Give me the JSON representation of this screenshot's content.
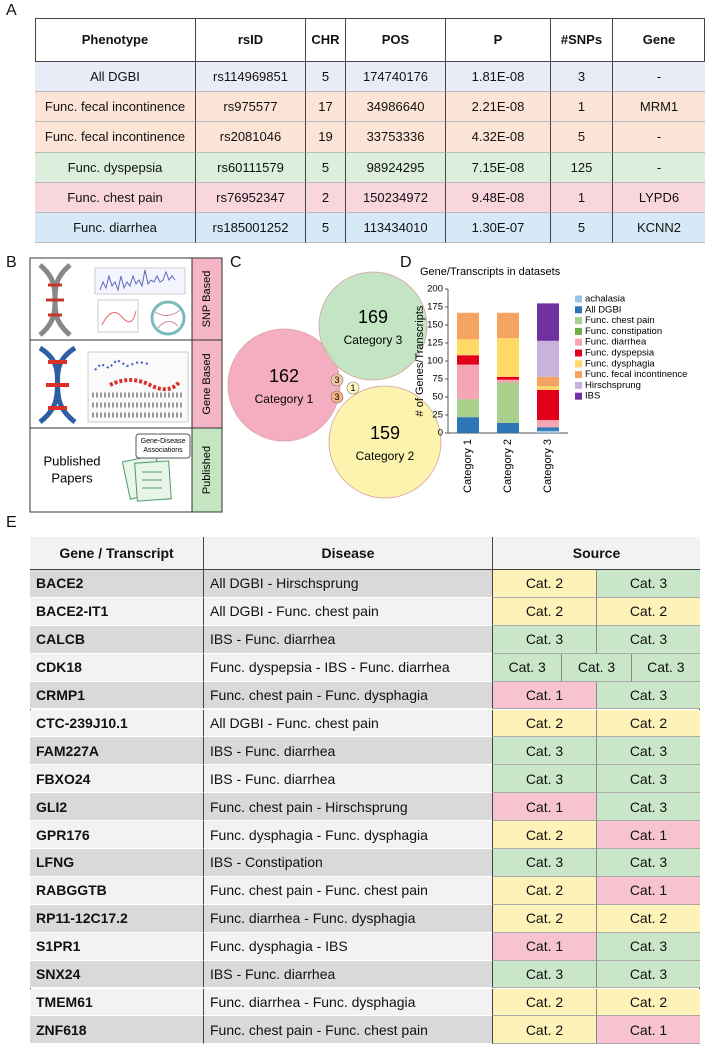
{
  "panel_labels": [
    "A",
    "B",
    "C",
    "D",
    "E"
  ],
  "panel_a": {
    "header": [
      "Phenotype",
      "rsID",
      "CHR",
      "POS",
      "P",
      "#SNPs",
      "Gene"
    ],
    "rows": [
      {
        "cells": [
          "All DGBI",
          "rs114969851",
          "5",
          "174740176",
          "1.81E-08",
          "3",
          "-"
        ],
        "color": "#e9ebf6"
      },
      {
        "cells": [
          "Func. fecal incontinence",
          "rs975577",
          "17",
          "34986640",
          "2.21E-08",
          "1",
          "MRM1"
        ],
        "color": "#fce4d6"
      },
      {
        "cells": [
          "Func. fecal incontinence",
          "rs2081046",
          "19",
          "33753336",
          "4.32E-08",
          "5",
          "-"
        ],
        "color": "#fce4d6"
      },
      {
        "cells": [
          "Func. dyspepsia",
          "rs60111579",
          "5",
          "98924295",
          "7.15E-08",
          "125",
          "-"
        ],
        "color": "#dcefdc"
      },
      {
        "cells": [
          "Func. chest pain",
          "rs76952347",
          "2",
          "150234972",
          "9.48E-08",
          "1",
          "LYPD6"
        ],
        "color": "#f9d5de"
      },
      {
        "cells": [
          "Func. diarrhea",
          "rs185001252",
          "5",
          "113434010",
          "1.30E-07",
          "5",
          "KCNN2"
        ],
        "color": "#d5e9f6"
      }
    ]
  },
  "panel_b": {
    "tracks": [
      {
        "label": "SNP Based",
        "color": "#f4b6c6"
      },
      {
        "label": "Gene Based",
        "color": "#f4b6c6"
      },
      {
        "label": "Published",
        "color": "#c5e4c0"
      }
    ],
    "papers_lines": [
      "Published",
      "Papers"
    ],
    "doc_lines": [
      "Gene-Disease",
      "Associations"
    ]
  },
  "panel_c": {
    "sets": [
      {
        "label": "Category 1",
        "count": "162",
        "color": "#f3a0b6"
      },
      {
        "label": "Category 3",
        "count": "169",
        "color": "#b9e0b9"
      },
      {
        "label": "Category 2",
        "count": "159",
        "color": "#fbf1a0"
      }
    ],
    "overlaps": [
      "3",
      "3",
      "1"
    ]
  },
  "chart_data": {
    "type": "bar",
    "stacked": true,
    "title": "Gene/Transcripts in datasets",
    "y_label": "# of Genes/Transcripts",
    "categories": [
      "Category 1",
      "Category 2",
      "Category 3"
    ],
    "ylim": [
      0,
      200
    ],
    "yticks": [
      0,
      25,
      50,
      75,
      100,
      125,
      150,
      175,
      200
    ],
    "series": [
      {
        "name": "achalasia",
        "color": "#9dc3e6",
        "values": [
          0,
          0,
          3
        ]
      },
      {
        "name": "All DGBI",
        "color": "#2e75b6",
        "values": [
          22,
          14,
          5
        ]
      },
      {
        "name": "Func. chest pain",
        "color": "#a9d18e",
        "values": [
          25,
          56,
          0
        ]
      },
      {
        "name": "Func. constipation",
        "color": "#70ad47",
        "values": [
          0,
          0,
          0
        ]
      },
      {
        "name": "Func. diarrhea",
        "color": "#f4a6b4",
        "values": [
          48,
          4,
          10
        ]
      },
      {
        "name": "Func. dyspepsia",
        "color": "#e2001a",
        "values": [
          13,
          4,
          42
        ]
      },
      {
        "name": "Func. dysphagia",
        "color": "#ffd966",
        "values": [
          22,
          54,
          5
        ]
      },
      {
        "name": "Func. fecal incontinence",
        "color": "#f4a460",
        "values": [
          37,
          35,
          13
        ]
      },
      {
        "name": "Hirschsprung",
        "color": "#c9b3dc",
        "values": [
          0,
          0,
          50
        ]
      },
      {
        "name": "IBS",
        "color": "#7030a0",
        "values": [
          0,
          0,
          52
        ]
      }
    ]
  },
  "panel_e": {
    "header": [
      "Gene / Transcript",
      "Disease",
      "Source"
    ],
    "source_colors": {
      "Cat. 1": "#f7c3d1",
      "Cat. 2": "#fdf2b7",
      "Cat. 3": "#c9e7c8"
    },
    "rows": [
      {
        "gene": "BACE2",
        "disease": "All DGBI - Hirschsprung",
        "sources": [
          "Cat. 2",
          "Cat. 3"
        ]
      },
      {
        "gene": "BACE2-IT1",
        "disease": "All DGBI - Func. chest pain",
        "sources": [
          "Cat. 2",
          "Cat. 2"
        ]
      },
      {
        "gene": "CALCB",
        "disease": "IBS - Func. diarrhea",
        "sources": [
          "Cat. 3",
          "Cat. 3"
        ]
      },
      {
        "gene": "CDK18",
        "disease": "Func. dyspepsia - IBS - Func. diarrhea",
        "sources": [
          "Cat. 3",
          "Cat. 3",
          "Cat. 3"
        ]
      },
      {
        "gene": "CRMP1",
        "disease": "Func. chest pain - Func. dysphagia",
        "sources": [
          "Cat. 1",
          "Cat. 3"
        ]
      },
      {
        "gene": "CTC-239J10.1",
        "disease": "All DGBI - Func. chest pain",
        "sources": [
          "Cat. 2",
          "Cat. 2"
        ]
      },
      {
        "gene": "FAM227A",
        "disease": "IBS - Func. diarrhea",
        "sources": [
          "Cat. 3",
          "Cat. 3"
        ]
      },
      {
        "gene": "FBXO24",
        "disease": "IBS - Func. diarrhea",
        "sources": [
          "Cat. 3",
          "Cat. 3"
        ]
      },
      {
        "gene": "GLI2",
        "disease": "Func. chest pain - Hirschsprung",
        "sources": [
          "Cat. 1",
          "Cat. 3"
        ]
      },
      {
        "gene": "GPR176",
        "disease": "Func. dysphagia - Func. dysphagia",
        "sources": [
          "Cat. 2",
          "Cat. 1"
        ]
      },
      {
        "gene": "LFNG",
        "disease": "IBS - Constipation",
        "sources": [
          "Cat. 3",
          "Cat. 3"
        ]
      },
      {
        "gene": "RABGGTB",
        "disease": "Func. chest pain - Func. chest pain",
        "sources": [
          "Cat. 2",
          "Cat. 1"
        ]
      },
      {
        "gene": "RP11-12C17.2",
        "disease": "Func. diarrhea - Func. dysphagia",
        "sources": [
          "Cat. 2",
          "Cat. 2"
        ]
      },
      {
        "gene": "S1PR1",
        "disease": "Func. dysphagia - IBS",
        "sources": [
          "Cat. 1",
          "Cat. 3"
        ]
      },
      {
        "gene": "SNX24",
        "disease": "IBS - Func. diarrhea",
        "sources": [
          "Cat. 3",
          "Cat. 3"
        ]
      },
      {
        "gene": "TMEM61",
        "disease": "Func. diarrhea - Func. dysphagia",
        "sources": [
          "Cat. 2",
          "Cat. 2"
        ]
      },
      {
        "gene": "ZNF618",
        "disease": "Func. chest pain - Func. chest pain",
        "sources": [
          "Cat. 2",
          "Cat. 1"
        ]
      }
    ]
  }
}
